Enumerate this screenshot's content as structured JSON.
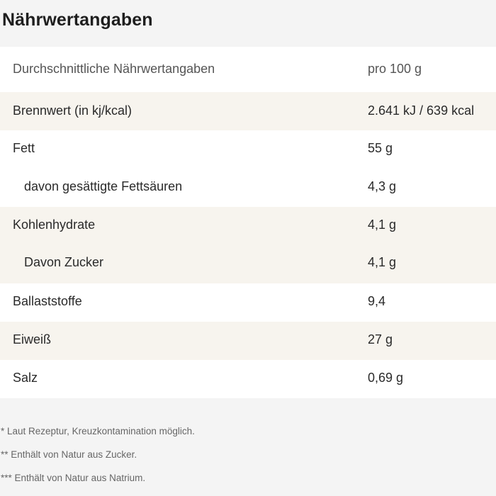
{
  "title": "Nährwertangaben",
  "table": {
    "header": {
      "label": "Durchschnittliche Nährwertangaben",
      "value": "pro 100 g"
    },
    "rows": [
      {
        "label": "Brennwert (in kj/kcal)",
        "value": "2.641 kJ / 639 kcal"
      },
      {
        "label": "Fett",
        "value": "55 g"
      },
      {
        "label": "davon gesättigte Fettsäuren",
        "value": "4,3 g"
      },
      {
        "label": "Kohlenhydrate",
        "value": "4,1 g"
      },
      {
        "label": "Davon Zucker",
        "value": "4,1 g"
      },
      {
        "label": "Ballaststoffe",
        "value": "9,4"
      },
      {
        "label": "Eiweiß",
        "value": "27 g"
      },
      {
        "label": "Salz",
        "value": "0,69 g"
      }
    ]
  },
  "footnotes": [
    "* Laut Rezeptur, Kreuzkontamination möglich.",
    "** Enthält von Natur aus Zucker.",
    "*** Enthält von Natur aus Natrium."
  ],
  "colors": {
    "page_background": "#f4f4f4",
    "row_white": "#ffffff",
    "row_cream": "#f7f4ee"
  }
}
